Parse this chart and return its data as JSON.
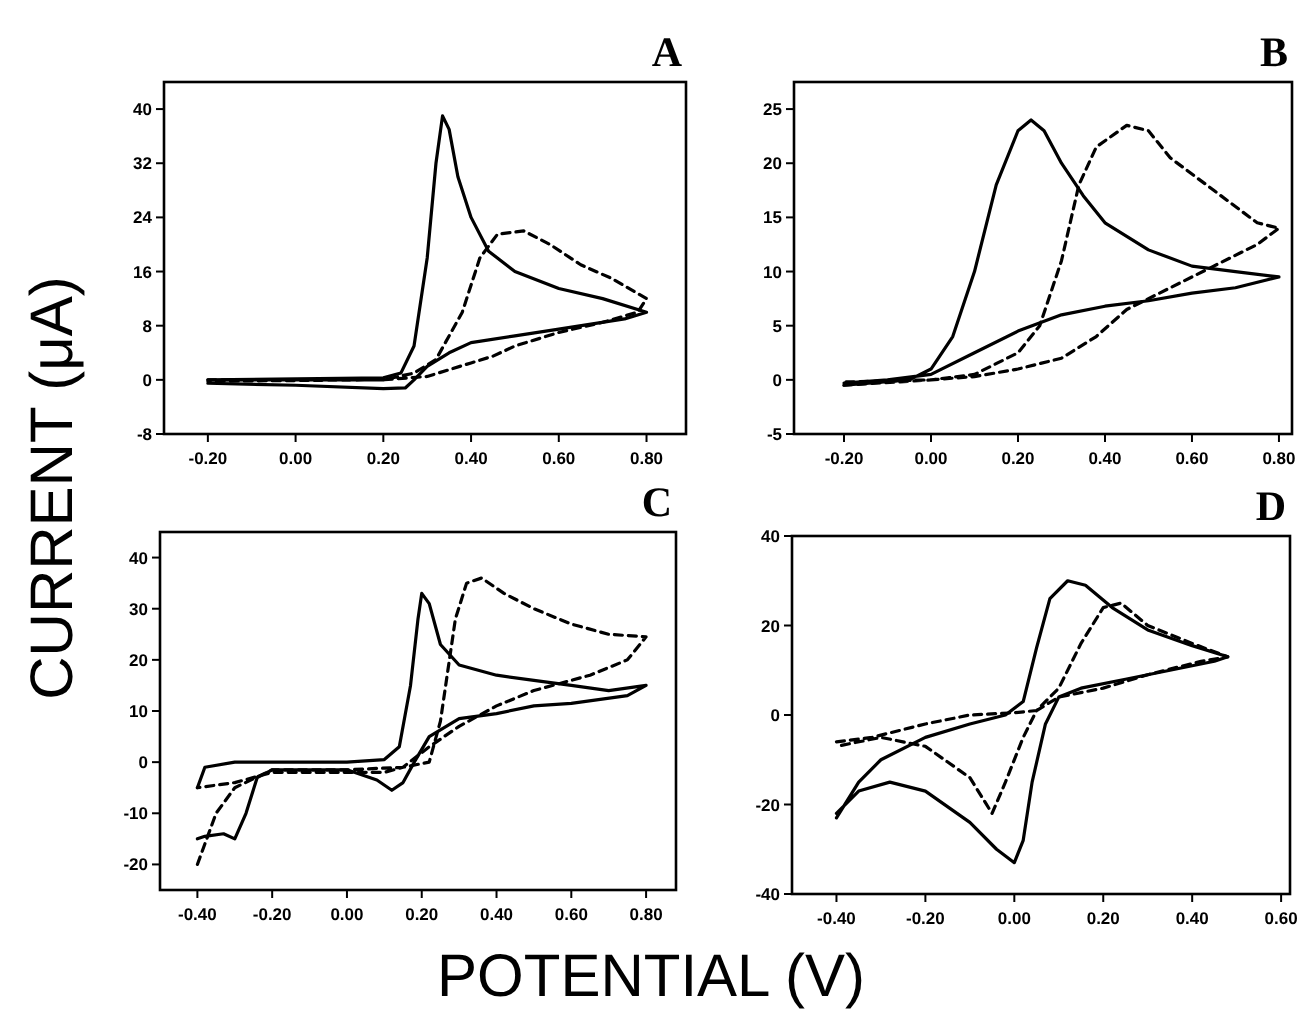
{
  "chart_data": [
    {
      "type": "line",
      "title": "A",
      "ylabel": "CURRENT (μA)",
      "xlim": [
        -0.3,
        0.89
      ],
      "ylim": [
        -8,
        44
      ],
      "xticks": [
        {
          "value": -0.2,
          "label": "-0.20"
        },
        {
          "value": 0,
          "label": "0.00"
        },
        {
          "value": 0.2,
          "label": "0.20"
        },
        {
          "value": 0.4,
          "label": "0.40"
        },
        {
          "value": 0.6,
          "label": "0.60"
        },
        {
          "value": 0.8,
          "label": "0.80"
        }
      ],
      "yticks": [
        -8,
        0,
        8,
        16,
        24,
        32,
        40
      ],
      "grid": false,
      "marker": "none",
      "series": [
        {
          "color": "#000000",
          "line_style": "solid",
          "x": [
            -0.2,
            0.2,
            0.24,
            0.27,
            0.3,
            0.32,
            0.335,
            0.35,
            0.37,
            0.4,
            0.44,
            0.5,
            0.6,
            0.7,
            0.8,
            0.75,
            0.6,
            0.5,
            0.4,
            0.35,
            0.3,
            0.27,
            0.25,
            0.2,
            0,
            -0.2
          ],
          "values": [
            0,
            0.3,
            1,
            5,
            18,
            32,
            39,
            37,
            30,
            24,
            19,
            16,
            13.5,
            12,
            10,
            9,
            7.5,
            6.5,
            5.5,
            4,
            2,
            0,
            -1.2,
            -1.3,
            -0.8,
            -0.5
          ]
        },
        {
          "color": "#000000",
          "line_style": "dashed",
          "x": [
            -0.2,
            0.2,
            0.27,
            0.32,
            0.38,
            0.42,
            0.46,
            0.52,
            0.58,
            0.65,
            0.72,
            0.8,
            0.78,
            0.7,
            0.6,
            0.5,
            0.45,
            0.4,
            0.35,
            0.3,
            0.2,
            -0.2
          ],
          "values": [
            0,
            0,
            1,
            3,
            10,
            18,
            21.5,
            22,
            20,
            17,
            15,
            12,
            10,
            8.5,
            7,
            5,
            3.5,
            2.5,
            1.5,
            0.5,
            0,
            -0.2
          ]
        }
      ]
    },
    {
      "type": "line",
      "title": "B",
      "xlim": [
        -0.315,
        0.83
      ],
      "ylim": [
        -5,
        27.5
      ],
      "xticks": [
        {
          "value": -0.2,
          "label": "-0.20"
        },
        {
          "value": 0,
          "label": "0.00"
        },
        {
          "value": 0.2,
          "label": "0.20"
        },
        {
          "value": 0.4,
          "label": "0.40"
        },
        {
          "value": 0.6,
          "label": "0.60"
        },
        {
          "value": 0.8,
          "label": "0.80"
        }
      ],
      "yticks": [
        -5,
        0,
        5,
        10,
        15,
        20,
        25
      ],
      "grid": false,
      "marker": "none",
      "series": [
        {
          "color": "#000000",
          "line_style": "solid",
          "x": [
            -0.2,
            -0.05,
            0,
            0.05,
            0.1,
            0.15,
            0.2,
            0.23,
            0.26,
            0.3,
            0.35,
            0.4,
            0.5,
            0.6,
            0.7,
            0.8,
            0.7,
            0.6,
            0.5,
            0.4,
            0.3,
            0.2,
            0.1,
            0,
            -0.1,
            -0.2
          ],
          "values": [
            -0.5,
            0,
            1,
            4,
            10,
            18,
            23,
            24,
            23,
            20,
            17,
            14.5,
            12,
            10.5,
            10,
            9.5,
            8.5,
            8,
            7.3,
            6.8,
            6,
            4.5,
            2.5,
            0.5,
            0,
            -0.3
          ]
        },
        {
          "color": "#000000",
          "line_style": "dashed",
          "x": [
            -0.2,
            0,
            0.1,
            0.2,
            0.25,
            0.3,
            0.34,
            0.38,
            0.45,
            0.5,
            0.55,
            0.65,
            0.75,
            0.8,
            0.75,
            0.65,
            0.55,
            0.45,
            0.38,
            0.3,
            0.2,
            0.1,
            0,
            -0.2
          ],
          "values": [
            -0.5,
            0,
            0.5,
            2.5,
            5,
            11,
            18,
            21.5,
            23.5,
            23,
            20.5,
            17.5,
            14.5,
            14,
            12.5,
            10.5,
            8.5,
            6.5,
            4,
            2,
            1,
            0.3,
            0,
            -0.2
          ]
        }
      ]
    },
    {
      "type": "line",
      "title": "C",
      "xlabel": "POTENTIAL (V)",
      "xlim": [
        -0.5,
        0.88
      ],
      "ylim": [
        -25,
        45
      ],
      "xticks": [
        {
          "value": -0.4,
          "label": "-0.40"
        },
        {
          "value": -0.2,
          "label": "-0.20"
        },
        {
          "value": 0,
          "label": "0.00"
        },
        {
          "value": 0.2,
          "label": "0.20"
        },
        {
          "value": 0.4,
          "label": "0.40"
        },
        {
          "value": 0.6,
          "label": "0.60"
        },
        {
          "value": 0.8,
          "label": "0.80"
        }
      ],
      "yticks": [
        -20,
        -10,
        0,
        10,
        20,
        30,
        40
      ],
      "grid": false,
      "marker": "none",
      "series": [
        {
          "color": "#000000",
          "line_style": "solid",
          "x": [
            -0.4,
            -0.38,
            -0.3,
            0,
            0.1,
            0.14,
            0.17,
            0.19,
            0.2,
            0.22,
            0.25,
            0.3,
            0.4,
            0.5,
            0.6,
            0.7,
            0.8,
            0.75,
            0.6,
            0.5,
            0.4,
            0.3,
            0.22,
            0.18,
            0.15,
            0.12,
            0.08,
            0,
            -0.2,
            -0.24,
            -0.27,
            -0.3,
            -0.33,
            -0.38,
            -0.4
          ],
          "values": [
            -5,
            -1,
            0,
            0,
            0.5,
            3,
            15,
            28,
            33,
            31,
            23,
            19,
            17,
            16,
            15,
            14,
            15,
            13,
            11.5,
            11,
            9.5,
            8.5,
            5,
            0,
            -4,
            -5.5,
            -3.5,
            -1.5,
            -1.5,
            -3,
            -10,
            -15,
            -14,
            -14.5,
            -15
          ]
        },
        {
          "color": "#000000",
          "line_style": "dashed",
          "x": [
            -0.4,
            -0.35,
            -0.3,
            -0.2,
            0,
            0.15,
            0.22,
            0.25,
            0.27,
            0.29,
            0.32,
            0.36,
            0.42,
            0.5,
            0.6,
            0.7,
            0.8,
            0.75,
            0.65,
            0.5,
            0.4,
            0.3,
            0.22,
            0.15,
            0.1,
            0,
            -0.2,
            -0.3,
            -0.4
          ],
          "values": [
            -20,
            -10,
            -5,
            -1.5,
            -1.5,
            -1,
            0,
            8,
            18,
            28,
            35,
            36,
            33,
            30,
            27,
            25,
            24.5,
            20,
            17,
            14,
            11,
            7,
            3,
            -1,
            -2,
            -2,
            -2,
            -4,
            -5
          ]
        }
      ]
    },
    {
      "type": "line",
      "title": "D",
      "xlim": [
        -0.5,
        0.62
      ],
      "ylim": [
        -40,
        40
      ],
      "xticks": [
        {
          "value": -0.4,
          "label": "-0.40"
        },
        {
          "value": -0.2,
          "label": "-0.20"
        },
        {
          "value": 0,
          "label": "0.00"
        },
        {
          "value": 0.2,
          "label": "0.20"
        },
        {
          "value": 0.4,
          "label": "0.40"
        },
        {
          "value": 0.6,
          "label": "0.60"
        }
      ],
      "yticks": [
        -40,
        -20,
        0,
        20,
        40
      ],
      "grid": false,
      "marker": "none",
      "series": [
        {
          "color": "#000000",
          "line_style": "solid",
          "x": [
            -0.4,
            -0.35,
            -0.3,
            -0.2,
            -0.1,
            -0.02,
            0.02,
            0.05,
            0.08,
            0.12,
            0.16,
            0.22,
            0.3,
            0.4,
            0.48,
            0.45,
            0.35,
            0.25,
            0.15,
            0.1,
            0.07,
            0.04,
            0.02,
            0,
            -0.04,
            -0.1,
            -0.2,
            -0.28,
            -0.35,
            -0.4
          ],
          "values": [
            -23,
            -15,
            -10,
            -5,
            -2,
            0,
            3,
            15,
            26,
            30,
            29,
            24,
            19,
            15.5,
            13,
            12,
            10,
            8,
            6,
            4,
            -2,
            -15,
            -28,
            -33,
            -30,
            -24,
            -17,
            -15,
            -17,
            -22
          ]
        },
        {
          "color": "#000000",
          "line_style": "dashed",
          "x": [
            -0.4,
            -0.32,
            -0.2,
            -0.1,
            0,
            0.05,
            0.1,
            0.15,
            0.2,
            0.24,
            0.3,
            0.4,
            0.48,
            0.42,
            0.3,
            0.2,
            0.1,
            0.05,
            0.02,
            -0.02,
            -0.05,
            -0.1,
            -0.2,
            -0.3,
            -0.4
          ],
          "values": [
            -6,
            -5,
            -2,
            0,
            0.5,
            1,
            6,
            16,
            24,
            25,
            20,
            16,
            13,
            12,
            9,
            6,
            4,
            1,
            -5,
            -15,
            -22,
            -14,
            -7,
            -5,
            -7
          ]
        }
      ]
    }
  ]
}
